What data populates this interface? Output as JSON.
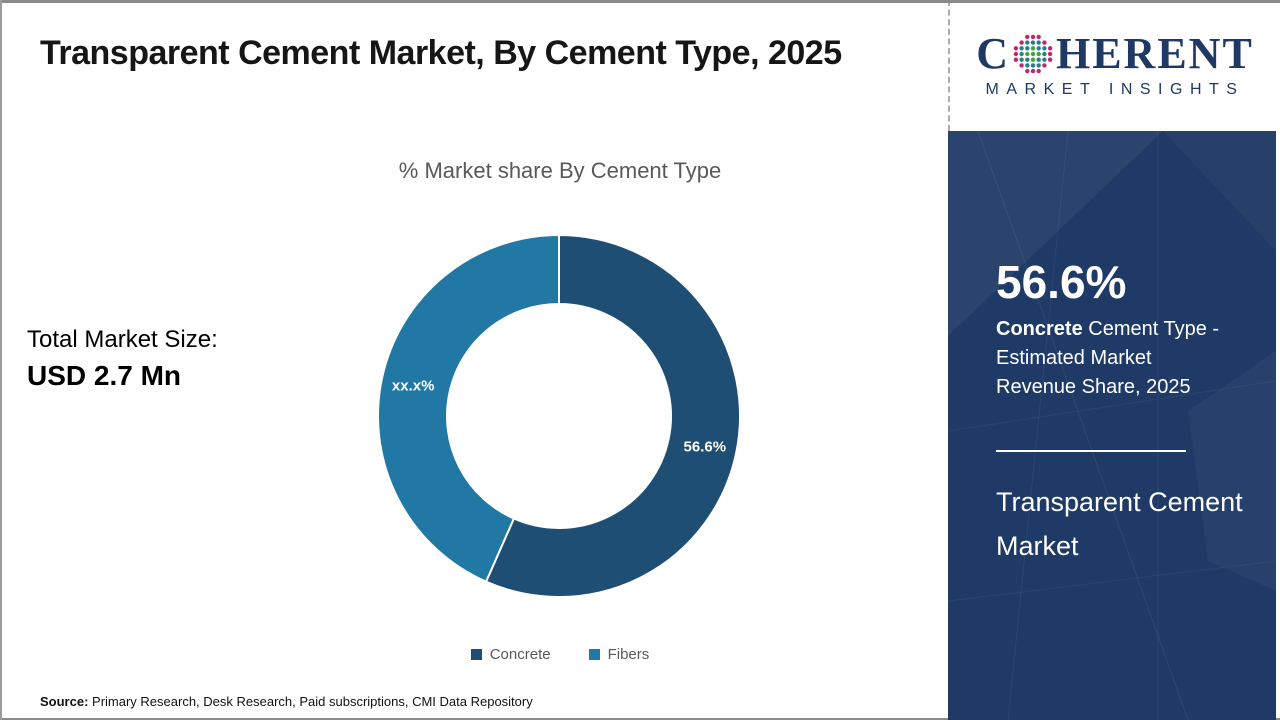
{
  "header": {
    "title": "Transparent Cement Market, By Cement Type, 2025"
  },
  "logo": {
    "name_prefix": "C",
    "name_suffix": "HERENT",
    "subtitle": "MARKET INSIGHTS",
    "brand_color": "#1f3864",
    "globe_colors": {
      "inner": "#46a344",
      "mid": "#23808b",
      "outer": "#c32572"
    }
  },
  "left_panel": {
    "total_label": "Total Market Size:",
    "total_value": "USD 2.7 Mn"
  },
  "chart_data": {
    "type": "pie",
    "subtype": "donut",
    "title": "% Market share By Cement Type",
    "categories": [
      "Concrete",
      "Fibers"
    ],
    "values": [
      56.6,
      43.4
    ],
    "slice_labels": [
      "56.6%",
      "xx.x%"
    ],
    "colors": [
      "#1f4e74",
      "#2178a5"
    ],
    "start_angle_deg": 0,
    "direction": "clockwise",
    "legend_position": "bottom"
  },
  "sidebar": {
    "bg_color": "#1f3a66",
    "stat_value": "56.6%",
    "stat_desc_bold": "Concrete",
    "stat_desc_rest": " Cement Type - Estimated Market Revenue Share, 2025",
    "market_name": "Transparent Cement Market"
  },
  "footer": {
    "source_label": "Source:",
    "source_text": " Primary Research, Desk Research, Paid subscriptions, CMI Data Repository"
  }
}
